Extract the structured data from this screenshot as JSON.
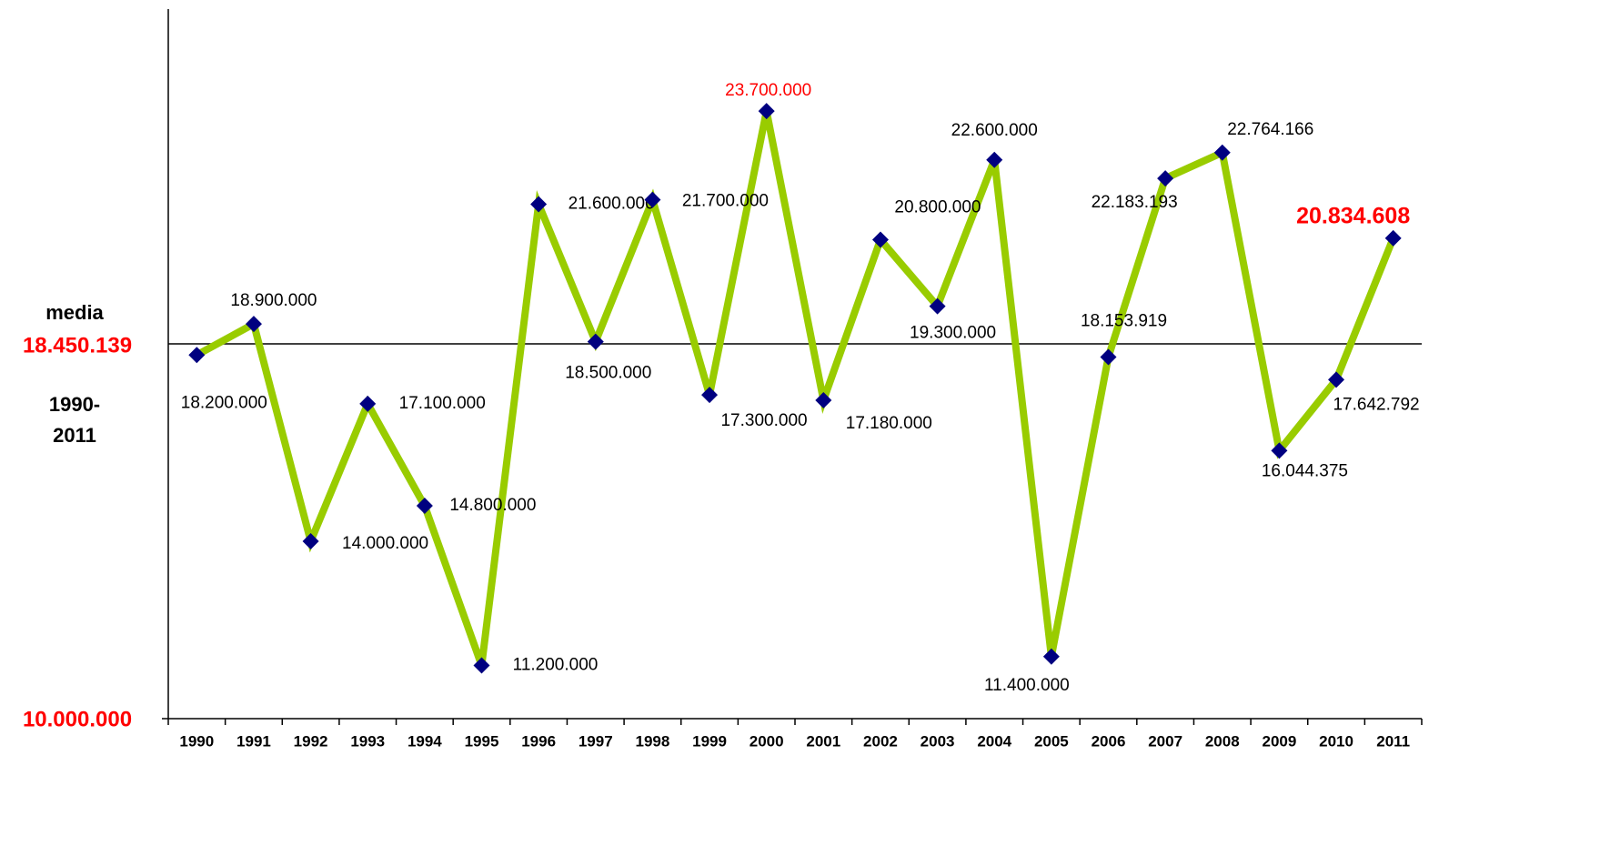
{
  "chart_data": {
    "type": "line",
    "categories": [
      "1990",
      "1991",
      "1992",
      "1993",
      "1994",
      "1995",
      "1996",
      "1997",
      "1998",
      "1999",
      "2000",
      "2001",
      "2002",
      "2003",
      "2004",
      "2005",
      "2006",
      "2007",
      "2008",
      "2009",
      "2010",
      "2011"
    ],
    "series": [
      {
        "color": "#99cc00",
        "marker_color": "#000080",
        "values": [
          18200000,
          18900000,
          14000000,
          17100000,
          14800000,
          11200000,
          21600000,
          18500000,
          21700000,
          17300000,
          23700000,
          17180000,
          20800000,
          19300000,
          22600000,
          11400000,
          18153919,
          22183193,
          22764166,
          16044375,
          17642792,
          20834608
        ],
        "value_labels": [
          "18.200.000",
          "18.900.000",
          "14.000.000",
          "17.100.000",
          "14.800.000",
          "11.200.000",
          "21.600.000",
          "18.500.000",
          "21.700.000",
          "17.300.000",
          "23.700.000",
          "17.180.000",
          "20.800.000",
          "19.300.000",
          "22.600.000",
          "11.400.000",
          "18.153.919",
          "22.183.193",
          "22.764.166",
          "16.044.375",
          "17.642.792",
          "20.834.608"
        ],
        "value_label_colors": [
          "#000",
          "#000",
          "#000",
          "#000",
          "#000",
          "#000",
          "#000",
          "#000",
          "#000",
          "#000",
          "#ff0000",
          "#000",
          "#000",
          "#000",
          "#000",
          "#000",
          "#000",
          "#000",
          "#000",
          "#000",
          "#000",
          "#ff0000"
        ],
        "value_label_weights": [
          "normal",
          "normal",
          "normal",
          "normal",
          "normal",
          "normal",
          "normal",
          "normal",
          "normal",
          "normal",
          "normal",
          "normal",
          "normal",
          "normal",
          "normal",
          "normal",
          "normal",
          "normal",
          "normal",
          "normal",
          "normal",
          "bold"
        ]
      }
    ],
    "ylim": [
      10000000,
      26000000
    ],
    "yticks": [
      {
        "value": 10000000,
        "label": "10.000.000"
      }
    ],
    "ytick_color": "#ff0000",
    "mean_line": {
      "value": 18450139,
      "label": "18.450.139",
      "color": "#ff0000",
      "title": "media",
      "period": [
        "1990-",
        "2011"
      ]
    }
  }
}
